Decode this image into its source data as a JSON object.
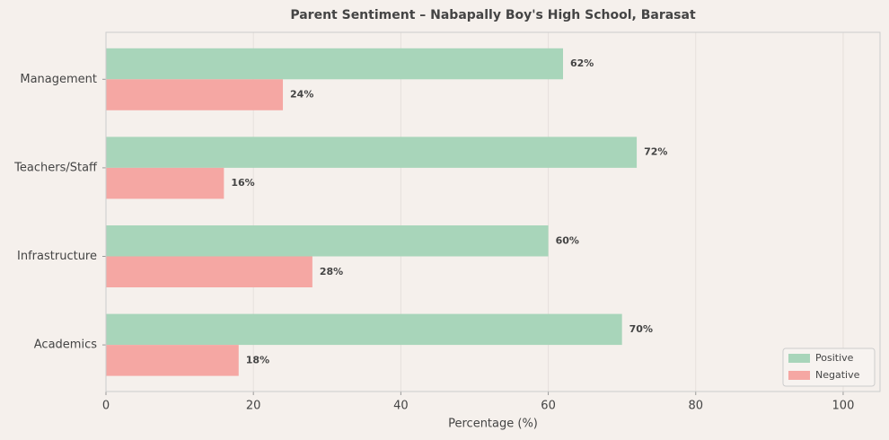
{
  "chart_data": {
    "type": "barh",
    "title": "Parent Sentiment – Nabapally Boy's High School, Barasat",
    "categories": [
      "Management",
      "Teachers/Staff",
      "Infrastructure",
      "Academics"
    ],
    "series": [
      {
        "name": "Positive",
        "color": "#a8d5ba",
        "values": [
          62,
          72,
          60,
          70
        ],
        "value_labels": [
          "62%",
          "72%",
          "60%",
          "70%"
        ]
      },
      {
        "name": "Negative",
        "color": "#f5a7a3",
        "values": [
          24,
          16,
          28,
          18
        ],
        "value_labels": [
          "24%",
          "16%",
          "28%",
          "18%"
        ]
      }
    ],
    "xlabel": "Percentage (%)",
    "xlim": [
      0,
      105
    ],
    "xticks": [
      0,
      20,
      40,
      60,
      80,
      100
    ],
    "grid": true,
    "legend": "lower right"
  }
}
